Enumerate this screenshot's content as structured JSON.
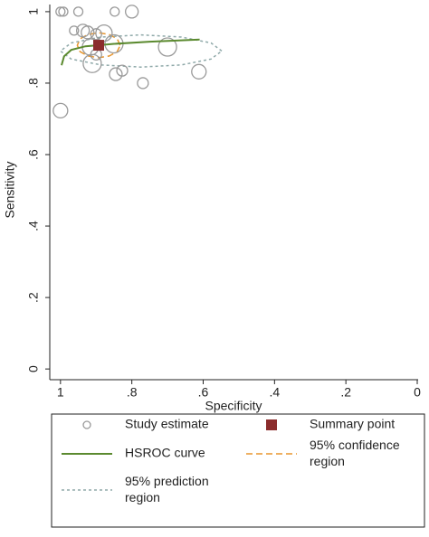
{
  "chart_data": {
    "type": "sroc",
    "xlabel": "Specificity",
    "ylabel": "Sensitivity",
    "xlim": [
      1.03,
      0
    ],
    "ylim": [
      -0.03,
      1.02
    ],
    "xticks": [
      1,
      {
        "value": 0.8,
        "label": ".8"
      },
      {
        "value": 0.6,
        "label": ".6"
      },
      {
        "value": 0.4,
        "label": ".4"
      },
      {
        "value": 0.2,
        "label": ".2"
      },
      0
    ],
    "yticks": [
      0,
      {
        "value": 0.2,
        "label": ".2"
      },
      {
        "value": 0.4,
        "label": ".4"
      },
      {
        "value": 0.6,
        "label": ".6"
      },
      {
        "value": 0.8,
        "label": ".8"
      },
      1
    ],
    "series": [
      {
        "name": "Study estimate",
        "kind": "points",
        "color": "#9a9a9a",
        "x": [
          1.0,
          0.992,
          0.95,
          0.848,
          0.8,
          1.0,
          0.962,
          0.937,
          0.924,
          0.9,
          0.916,
          0.911,
          0.878,
          0.85,
          0.7,
          0.612,
          0.845,
          0.827,
          0.769,
          0.9
        ],
        "y": [
          1.0,
          1.0,
          1.0,
          1.0,
          1.0,
          0.723,
          0.947,
          0.947,
          0.942,
          0.937,
          0.901,
          0.855,
          0.94,
          0.91,
          0.901,
          0.832,
          0.825,
          0.835,
          0.8,
          0.88
        ],
        "sizes": [
          5,
          5,
          5,
          5,
          7,
          8,
          5,
          7,
          7,
          6,
          9,
          10,
          9,
          10,
          10,
          8,
          7,
          6,
          6,
          6
        ]
      },
      {
        "name": "Summary point",
        "kind": "summary",
        "color": "#8b2c2c",
        "x": [
          0.893
        ],
        "y": [
          0.906
        ]
      },
      {
        "name": "HSROC curve",
        "kind": "curve",
        "color": "#5b8a2f",
        "x": [
          0.997,
          0.99,
          0.97,
          0.93,
          0.85,
          0.75,
          0.61
        ],
        "y": [
          0.85,
          0.875,
          0.893,
          0.903,
          0.91,
          0.916,
          0.922
        ]
      },
      {
        "name": "95% confidence region",
        "kind": "region",
        "color": "#e8962e",
        "dash": "7,4",
        "x": [
          0.833,
          0.841,
          0.863,
          0.893,
          0.923,
          0.945,
          0.953,
          0.945,
          0.923,
          0.893,
          0.863,
          0.841
        ],
        "y": [
          0.906,
          0.924,
          0.936,
          0.941,
          0.936,
          0.924,
          0.906,
          0.888,
          0.876,
          0.871,
          0.876,
          0.888
        ]
      },
      {
        "name": "95% prediction region",
        "kind": "region",
        "color": "#8fa9a9",
        "dash": "3,3",
        "x": [
          0.548,
          0.578,
          0.661,
          0.774,
          0.887,
          0.97,
          1.0,
          0.97,
          0.887,
          0.774,
          0.661,
          0.578
        ],
        "y": [
          0.89,
          0.9125,
          0.929,
          0.935,
          0.929,
          0.9125,
          0.89,
          0.8675,
          0.851,
          0.845,
          0.851,
          0.8675
        ]
      }
    ]
  }
}
